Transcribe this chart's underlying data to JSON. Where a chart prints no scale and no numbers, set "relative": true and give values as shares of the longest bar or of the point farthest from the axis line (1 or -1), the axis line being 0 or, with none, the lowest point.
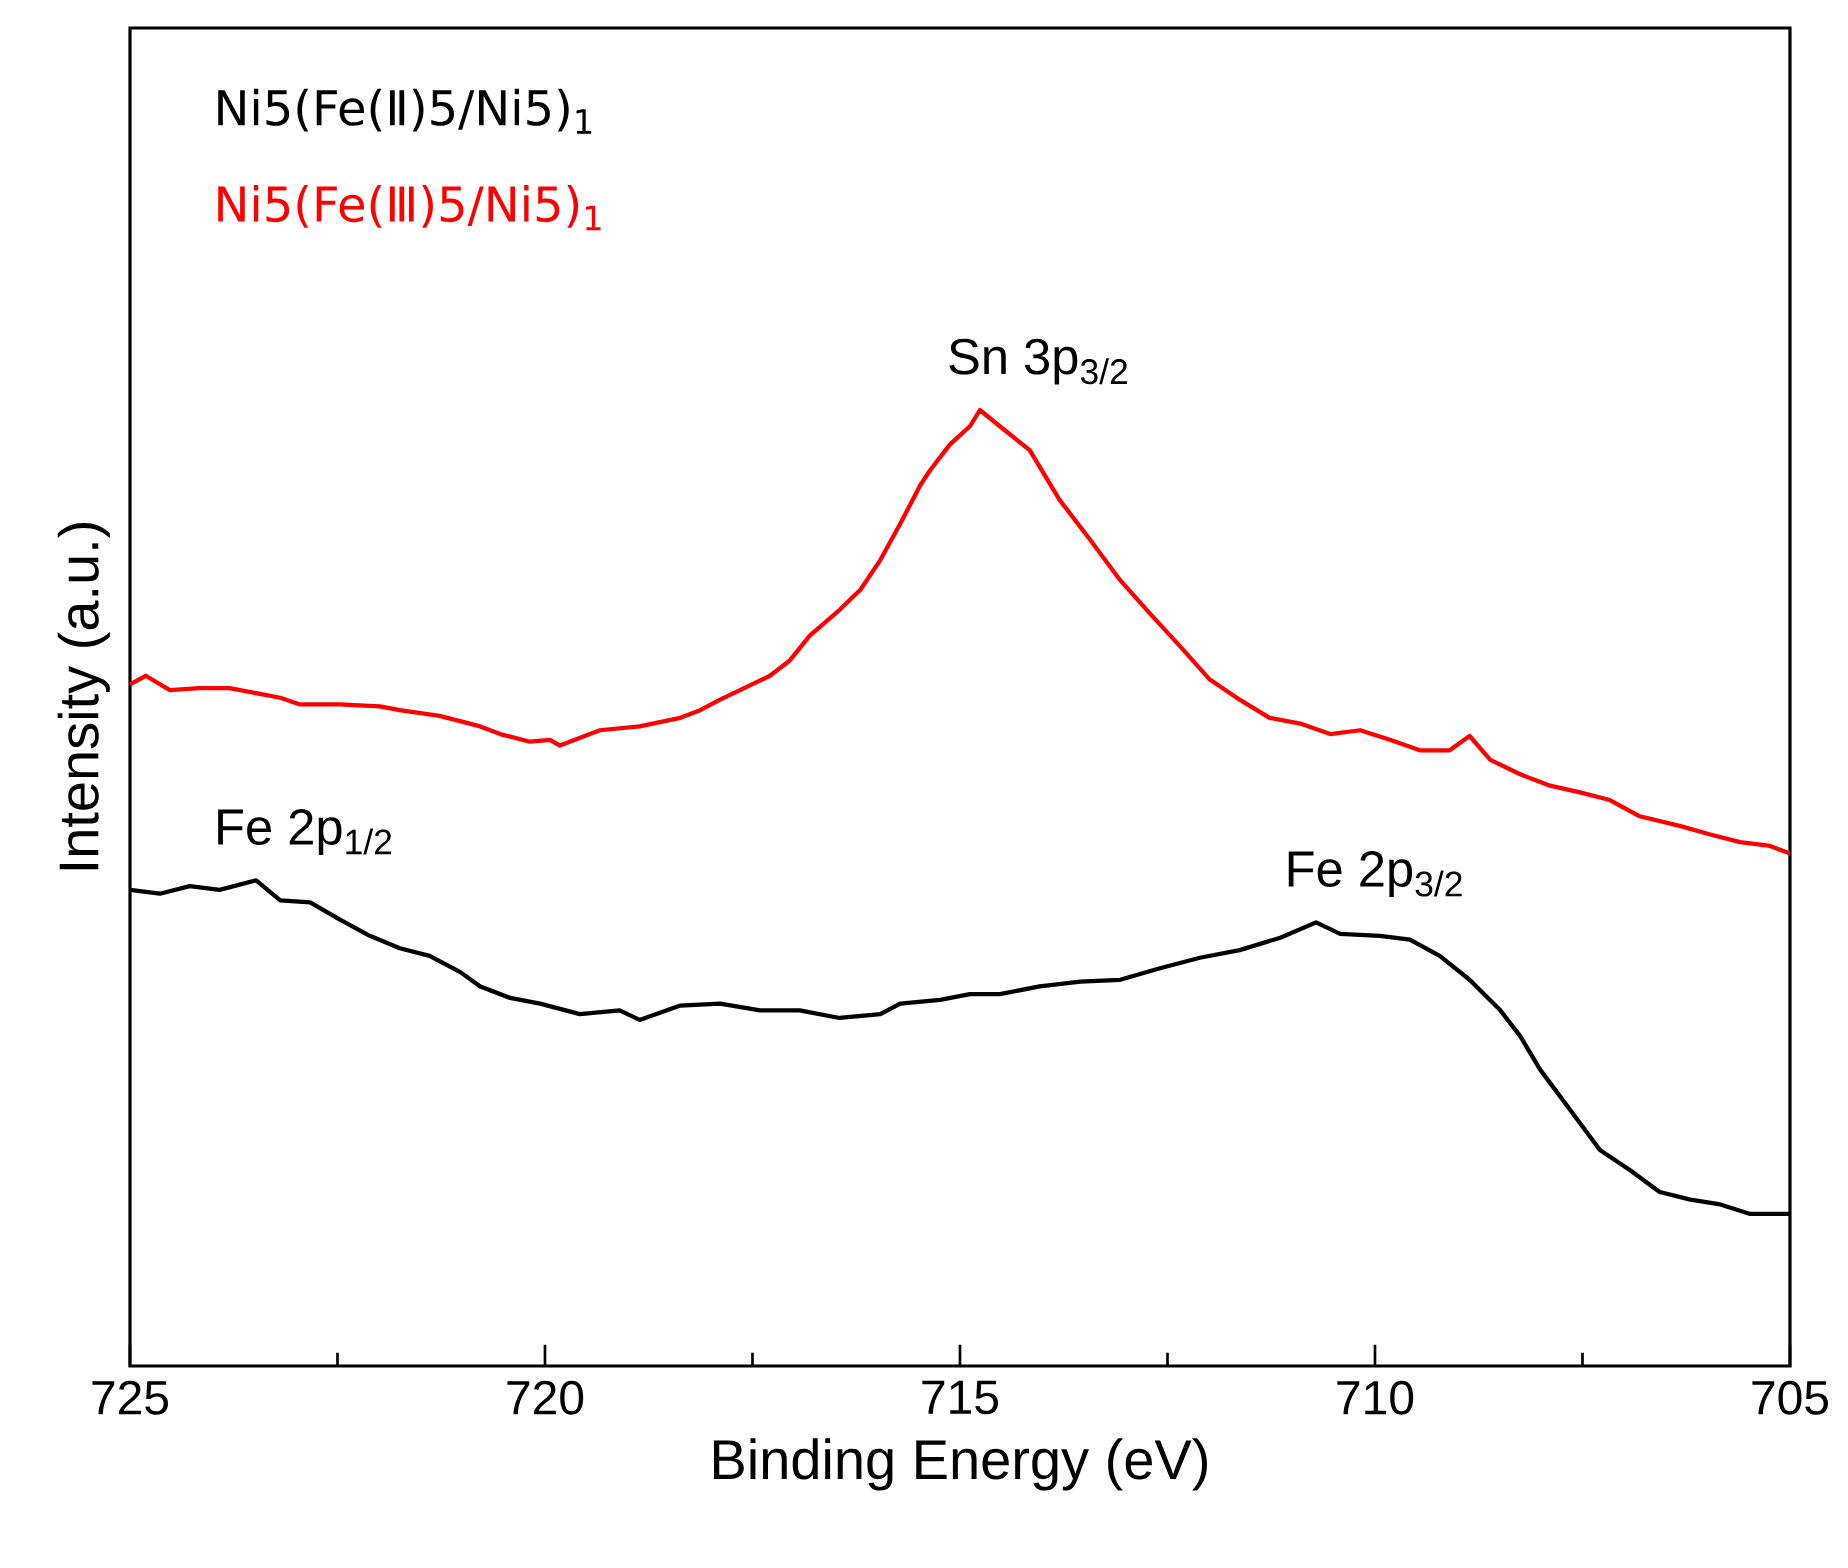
{
  "chart_data": {
    "type": "line",
    "relative": true,
    "xlabel": "Binding Energy (eV)",
    "ylabel": "Intensity (a.u.)",
    "xlim": [
      725,
      705
    ],
    "xticks": [
      725,
      {
        "value": 722.5,
        "label": null
      },
      720,
      {
        "value": 717.5,
        "label": null
      },
      715,
      {
        "value": 712.5,
        "label": null
      },
      710,
      {
        "value": 707.5,
        "label": null
      },
      705
    ],
    "legend": "top left",
    "marker": "none",
    "line_style": "solid",
    "grid": false,
    "series": [
      {
        "name": "Ni5(Fe(Ⅱ)5/Ni5)$_{1}$",
        "color": "#000000",
        "x": [
          725.0,
          724.64,
          724.28,
          723.92,
          723.48,
          723.19,
          722.83,
          722.47,
          722.11,
          721.75,
          721.39,
          721.02,
          720.78,
          720.42,
          720.06,
          719.58,
          719.1,
          718.86,
          718.37,
          717.89,
          717.41,
          716.93,
          716.45,
          715.96,
          715.72,
          715.24,
          714.88,
          714.52,
          714.04,
          713.55,
          713.07,
          712.59,
          712.11,
          711.63,
          711.14,
          710.71,
          710.42,
          709.94,
          709.58,
          709.22,
          708.86,
          708.49,
          708.25,
          708.01,
          707.65,
          707.29,
          706.93,
          706.57,
          706.2,
          705.84,
          705.48,
          705.0
        ],
        "values": [
          0.498,
          0.494,
          0.502,
          0.498,
          0.508,
          0.487,
          0.485,
          0.467,
          0.45,
          0.437,
          0.429,
          0.412,
          0.397,
          0.385,
          0.379,
          0.368,
          0.372,
          0.362,
          0.377,
          0.379,
          0.372,
          0.372,
          0.364,
          0.368,
          0.379,
          0.383,
          0.389,
          0.389,
          0.397,
          0.402,
          0.404,
          0.416,
          0.427,
          0.435,
          0.448,
          0.464,
          0.452,
          0.45,
          0.446,
          0.429,
          0.404,
          0.372,
          0.345,
          0.31,
          0.268,
          0.226,
          0.205,
          0.182,
          0.174,
          0.169,
          0.159,
          0.159
        ]
      },
      {
        "name": "Ni5(Fe(Ⅲ)5/Ni5)$_{1}$",
        "color": "#ff0000",
        "x": [
          725.0,
          724.81,
          724.52,
          724.16,
          723.8,
          723.19,
          722.95,
          722.47,
          721.99,
          721.75,
          721.27,
          720.78,
          720.54,
          720.18,
          719.94,
          719.82,
          719.34,
          718.86,
          718.37,
          718.13,
          717.89,
          717.65,
          717.29,
          717.05,
          716.81,
          716.45,
          716.2,
          715.96,
          715.72,
          715.48,
          715.36,
          715.12,
          714.88,
          714.76,
          714.52,
          714.16,
          713.8,
          713.43,
          713.07,
          712.71,
          712.35,
          711.99,
          711.63,
          711.27,
          710.9,
          710.54,
          710.18,
          709.82,
          709.46,
          709.1,
          708.86,
          708.61,
          708.25,
          707.89,
          707.53,
          707.17,
          706.81,
          706.33,
          705.96,
          705.6,
          705.24,
          705.0
        ],
        "values": [
          0.713,
          0.722,
          0.707,
          0.709,
          0.709,
          0.699,
          0.692,
          0.692,
          0.69,
          0.686,
          0.68,
          0.669,
          0.661,
          0.653,
          0.655,
          0.649,
          0.665,
          0.669,
          0.678,
          0.686,
          0.697,
          0.707,
          0.722,
          0.738,
          0.764,
          0.791,
          0.812,
          0.843,
          0.881,
          0.921,
          0.937,
          0.964,
          0.983,
          1.0,
          0.983,
          0.958,
          0.906,
          0.864,
          0.822,
          0.787,
          0.753,
          0.718,
          0.697,
          0.678,
          0.672,
          0.661,
          0.665,
          0.655,
          0.644,
          0.644,
          0.659,
          0.634,
          0.619,
          0.607,
          0.6,
          0.592,
          0.575,
          0.565,
          0.556,
          0.548,
          0.544,
          0.536
        ]
      }
    ],
    "annotations": [
      {
        "text": "Sn 3p$_{3/2}$",
        "x": 714.76,
        "y": 1.0
      },
      {
        "text": "Fe 2p$_{1/2}$",
        "x": 723.48,
        "y": 0.508
      },
      {
        "text": "Fe 2p$_{3/2}$",
        "x": 710.71,
        "y": 0.464
      }
    ]
  }
}
